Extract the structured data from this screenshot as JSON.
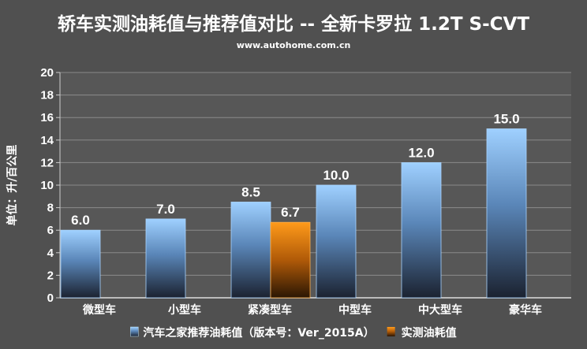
{
  "chart_data": {
    "type": "bar",
    "title": "轿车实测油耗值与推荐值对比 -- 全新卡罗拉 1.2T S-CVT",
    "subtitle": "www.autohome.com.cn",
    "ylabel": "单位：升/百公里",
    "xlabel": "",
    "ylim": [
      0,
      20
    ],
    "yticks": [
      0,
      2,
      4,
      6,
      8,
      10,
      12,
      14,
      16,
      18,
      20
    ],
    "grid": true,
    "legend_position": "bottom",
    "categories": [
      "微型车",
      "小型车",
      "紧凑型车",
      "中型车",
      "中大型车",
      "豪华车"
    ],
    "series": [
      {
        "name": "汽车之家推荐油耗值（版本号：Ver_2015A）",
        "values": [
          6.0,
          7.0,
          8.5,
          10.0,
          12.0,
          15.0
        ],
        "color": "#8ec6f5"
      },
      {
        "name": "实测油耗值",
        "values": [
          null,
          null,
          6.7,
          null,
          null,
          null
        ],
        "color": "#f08a10"
      }
    ]
  }
}
